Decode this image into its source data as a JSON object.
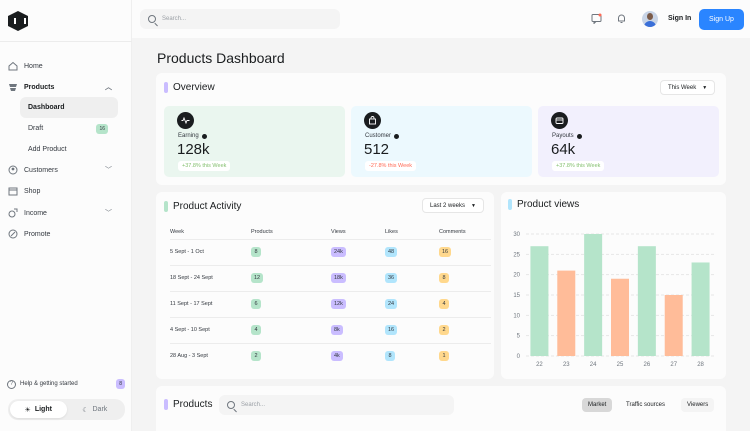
{
  "sidebar": {
    "items": [
      {
        "label": "Home"
      },
      {
        "label": "Products"
      },
      {
        "label": "Customers"
      },
      {
        "label": "Shop"
      },
      {
        "label": "Income"
      },
      {
        "label": "Promote"
      }
    ],
    "sub_items": [
      {
        "label": "Dashboard"
      },
      {
        "label": "Draft",
        "badge": "16"
      },
      {
        "label": "Add Product"
      }
    ],
    "help_label": "Help & getting started",
    "help_count": "8",
    "theme_light": "Light",
    "theme_dark": "Dark"
  },
  "header": {
    "search_placeholder": "Search...",
    "signin_label": "Sign In",
    "signup_label": "Sign Up"
  },
  "page_title": "Products Dashboard",
  "overview": {
    "title": "Overview",
    "period": "This Week",
    "stats": [
      {
        "label": "Earning",
        "value": "128k",
        "change": "+37.8% this Week",
        "bg": "#eaf6ef",
        "change_color": "#83bf6e"
      },
      {
        "label": "Customer",
        "value": "512",
        "change": "-27.8% this Week",
        "bg": "#ecf9fe",
        "change_color": "#ff6a55"
      },
      {
        "label": "Payouts",
        "value": "64k",
        "change": "+37.8% this Week",
        "bg": "#f2f0fd",
        "change_color": "#83bf6e"
      }
    ]
  },
  "activity": {
    "title": "Product Activity",
    "period": "Last 2 weeks",
    "columns": [
      "Week",
      "Products",
      "Views",
      "Likes",
      "Comments"
    ],
    "rows": [
      {
        "week": "5 Sept - 1 Oct",
        "products": "8",
        "views": "24k",
        "likes": "48",
        "comments": "16"
      },
      {
        "week": "18 Sept - 24 Sept",
        "products": "12",
        "views": "18k",
        "likes": "36",
        "comments": "8"
      },
      {
        "week": "11 Sept - 17 Sept",
        "products": "6",
        "views": "12k",
        "likes": "24",
        "comments": "4"
      },
      {
        "week": "4 Sept - 10 Sept",
        "products": "4",
        "views": "8k",
        "likes": "16",
        "comments": "2"
      },
      {
        "week": "28 Aug - 3 Sept",
        "products": "2",
        "views": "4k",
        "likes": "8",
        "comments": "1"
      }
    ]
  },
  "product_views": {
    "title": "Product views"
  },
  "chart_data": {
    "type": "bar",
    "title": "Product views",
    "categories": [
      "22",
      "23",
      "24",
      "25",
      "26",
      "27",
      "28"
    ],
    "values": [
      27,
      21,
      30,
      19,
      27,
      15,
      23
    ],
    "bar_colors": [
      "#b5e4ca",
      "#ffbc99",
      "#b5e4ca",
      "#ffbc99",
      "#b5e4ca",
      "#ffbc99",
      "#b5e4ca"
    ],
    "yticks": [
      "30",
      "25",
      "20",
      "15",
      "10",
      "5",
      "0"
    ],
    "ylim": [
      0,
      30
    ],
    "xlabel": "",
    "ylabel": ""
  },
  "products": {
    "title": "Products",
    "search_placeholder": "Search...",
    "tabs": [
      "Market",
      "Traffic sources",
      "Viewers"
    ]
  },
  "colors": {
    "accent_blue": "#2a85ff",
    "pill_green": "#b5e4ca",
    "pill_purple": "#cabdff",
    "pill_blue": "#b1e5fc",
    "pill_orange": "#ffd88d"
  }
}
